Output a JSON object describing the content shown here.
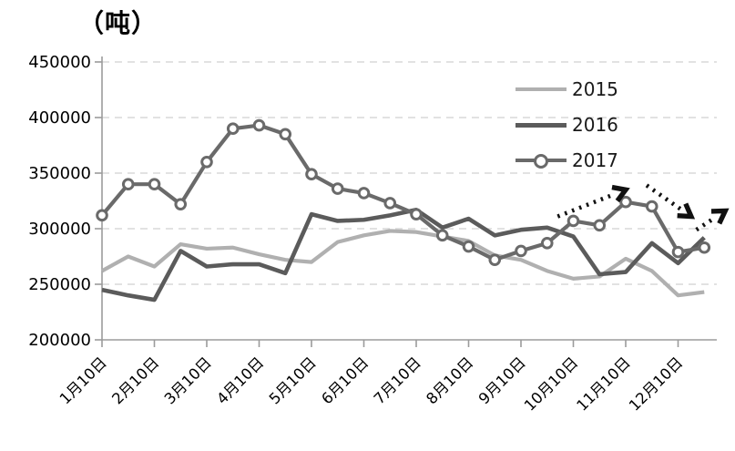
{
  "title": "（吨）",
  "legend": {
    "items": [
      {
        "label": "2015"
      },
      {
        "label": "2016"
      },
      {
        "label": "2017"
      }
    ]
  },
  "colors": {
    "series2015": "#b0b0b0",
    "series2016": "#5b5b5b",
    "series2017": "#6a6a6a",
    "grid": "#d9d9d9",
    "axis": "#9b9b9b",
    "arrow": "#111111",
    "text": "#000000"
  },
  "chart_data": {
    "type": "line",
    "title": "（吨）",
    "ylabel": "（吨）",
    "x_ticklabels": [
      "1月10日",
      "2月10日",
      "3月10日",
      "4月10日",
      "5月10日",
      "6月10日",
      "7月10日",
      "8月10日",
      "9月10日",
      "10月10日",
      "11月10日",
      "12月10日"
    ],
    "points_per_month": 2,
    "ylim": [
      200000,
      450000
    ],
    "y_ticks": [
      200000,
      250000,
      300000,
      350000,
      400000,
      450000
    ],
    "grid": "horizontal-dashed",
    "legend_position": "upper-right-inside",
    "series": [
      {
        "name": "2015",
        "marker": "none",
        "values": [
          262000,
          275000,
          266000,
          286000,
          282000,
          283000,
          277000,
          272000,
          270000,
          288000,
          294000,
          298000,
          297000,
          293000,
          289000,
          276000,
          272000,
          262000,
          255000,
          257000,
          273000,
          262000,
          240000,
          243000
        ]
      },
      {
        "name": "2016",
        "marker": "none",
        "values": [
          245000,
          240000,
          236000,
          280000,
          266000,
          268000,
          268000,
          260000,
          313000,
          307000,
          308000,
          312000,
          317000,
          301000,
          309000,
          294000,
          299000,
          301000,
          293000,
          259000,
          261000,
          287000,
          269000,
          292000
        ]
      },
      {
        "name": "2017",
        "marker": "circle",
        "values": [
          312000,
          340000,
          340000,
          322000,
          360000,
          390000,
          393000,
          385000,
          349000,
          336000,
          332000,
          323000,
          313000,
          294000,
          284000,
          272000,
          280000,
          287000,
          307000,
          303000,
          324000,
          320000,
          279000,
          283000
        ]
      }
    ],
    "annotations": [
      {
        "name": "trend-arrow-up-oct-nov",
        "style": "dotted-arrow",
        "from_index": 17.4,
        "from_value": 311000,
        "to_index": 20.0,
        "to_value": 335000
      },
      {
        "name": "trend-arrow-down-dec",
        "style": "dotted-arrow",
        "from_index": 20.8,
        "from_value": 339000,
        "to_index": 22.5,
        "to_value": 311000
      },
      {
        "name": "trend-arrow-up-end",
        "style": "dotted-arrow",
        "from_index": 22.7,
        "from_value": 299000,
        "to_index": 23.8,
        "to_value": 316000
      }
    ]
  }
}
